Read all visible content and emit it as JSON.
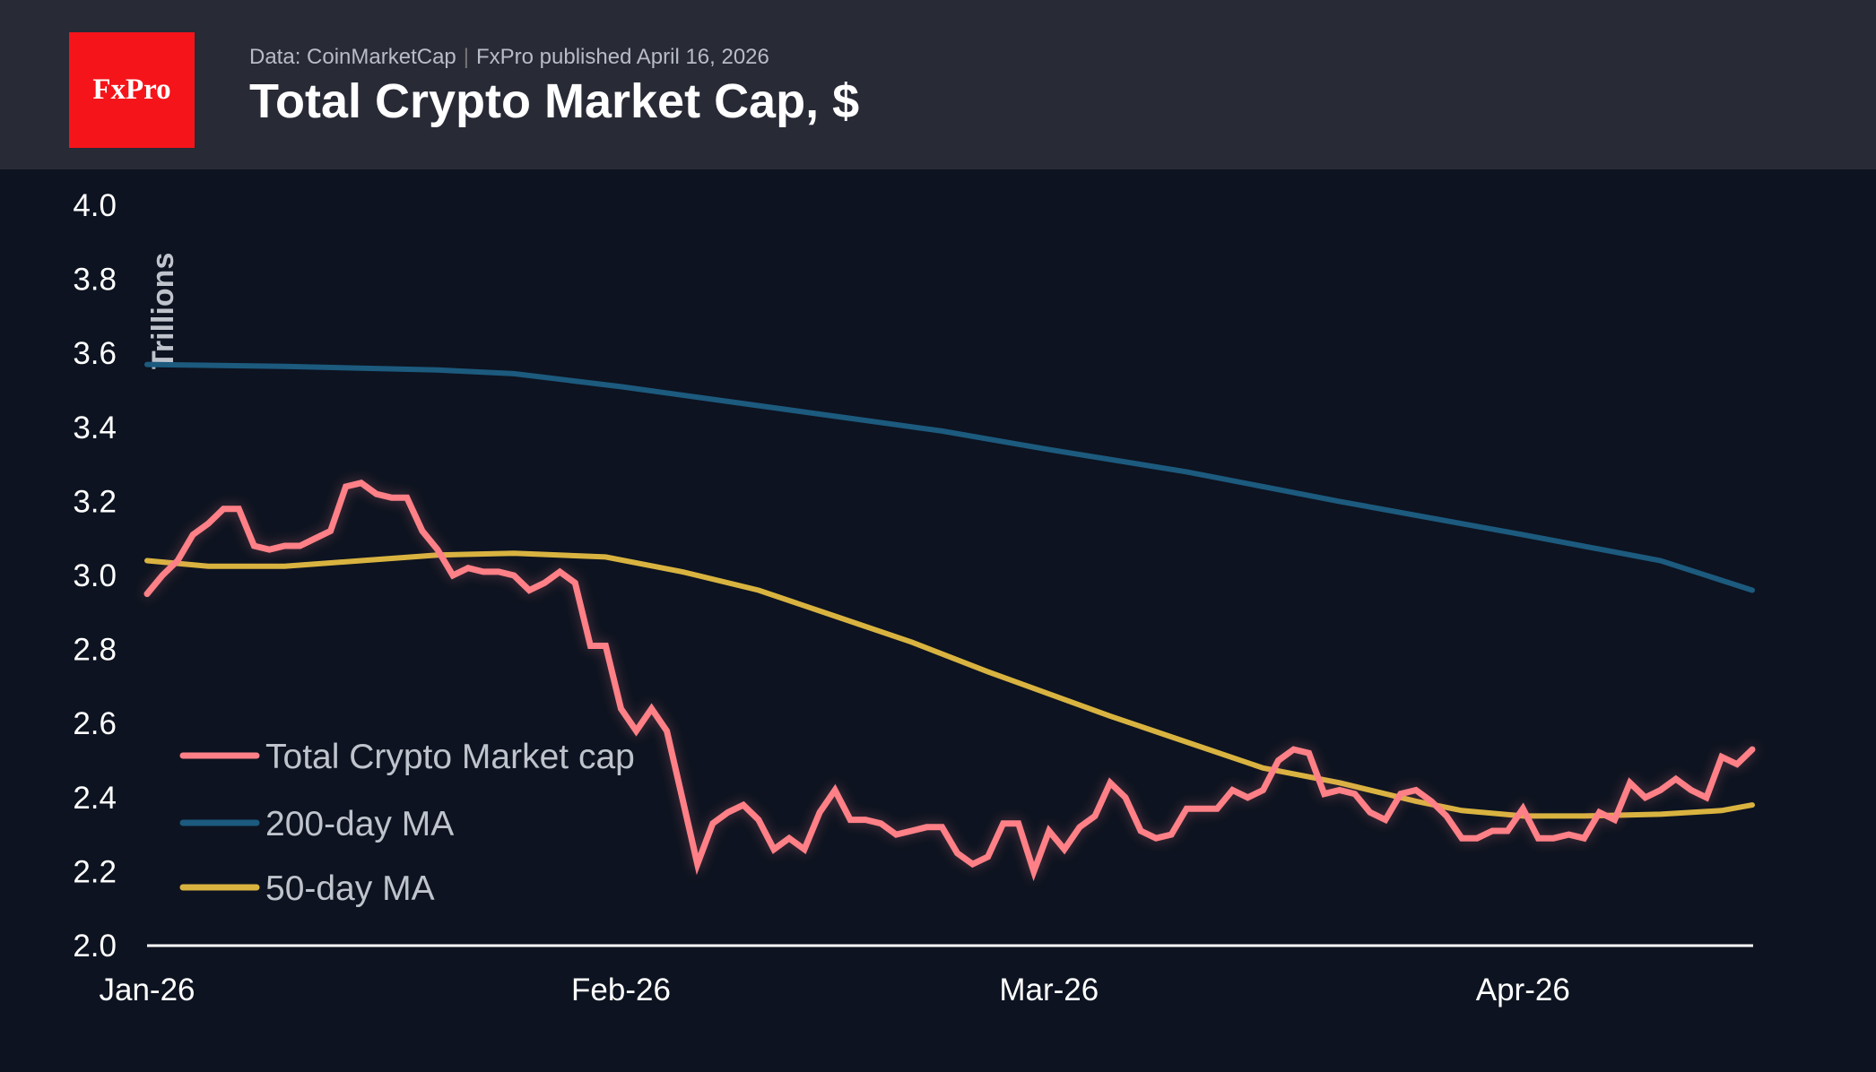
{
  "header": {
    "logo_text": "FxPro",
    "source": "Data: CoinMarketCap",
    "published": "FxPro published April 16, 2026",
    "title": "Total Crypto Market Cap, $"
  },
  "colors": {
    "header_bg": "#282a36",
    "background": "#0d1320",
    "logo_red": "#f5141a",
    "market_cap": "#ff8087",
    "ma200": "#1c5a7e",
    "ma50": "#d9b340"
  },
  "chart_data": {
    "type": "line",
    "title": "Total Crypto Market Cap, $",
    "ylabel": "Trillions",
    "xlabel": "",
    "ylim": [
      2.0,
      4.0
    ],
    "xlim": [
      "2026-01-01",
      "2026-04-16"
    ],
    "y_ticks": [
      "2.0",
      "2.2",
      "2.4",
      "2.6",
      "2.8",
      "3.0",
      "3.2",
      "3.4",
      "3.6",
      "3.8",
      "4.0"
    ],
    "x_ticks": [
      {
        "date": "2026-01-01",
        "label": "Jan-26"
      },
      {
        "date": "2026-02-01",
        "label": "Feb-26"
      },
      {
        "date": "2026-03-01",
        "label": "Mar-26"
      },
      {
        "date": "2026-04-01",
        "label": "Apr-26"
      }
    ],
    "grid": false,
    "legend_position": "bottom-left",
    "series": [
      {
        "name": "Total Crypto Market cap",
        "color": "#ff8087",
        "points": [
          [
            "2026-01-01",
            2.95
          ],
          [
            "2026-01-02",
            3.0
          ],
          [
            "2026-01-03",
            3.04
          ],
          [
            "2026-01-04",
            3.11
          ],
          [
            "2026-01-05",
            3.14
          ],
          [
            "2026-01-06",
            3.18
          ],
          [
            "2026-01-07",
            3.18
          ],
          [
            "2026-01-08",
            3.08
          ],
          [
            "2026-01-09",
            3.07
          ],
          [
            "2026-01-10",
            3.08
          ],
          [
            "2026-01-11",
            3.08
          ],
          [
            "2026-01-12",
            3.1
          ],
          [
            "2026-01-13",
            3.12
          ],
          [
            "2026-01-14",
            3.24
          ],
          [
            "2026-01-15",
            3.25
          ],
          [
            "2026-01-16",
            3.22
          ],
          [
            "2026-01-17",
            3.21
          ],
          [
            "2026-01-18",
            3.21
          ],
          [
            "2026-01-19",
            3.12
          ],
          [
            "2026-01-20",
            3.07
          ],
          [
            "2026-01-21",
            3.0
          ],
          [
            "2026-01-22",
            3.02
          ],
          [
            "2026-01-23",
            3.01
          ],
          [
            "2026-01-24",
            3.01
          ],
          [
            "2026-01-25",
            3.0
          ],
          [
            "2026-01-26",
            2.96
          ],
          [
            "2026-01-27",
            2.98
          ],
          [
            "2026-01-28",
            3.01
          ],
          [
            "2026-01-29",
            2.98
          ],
          [
            "2026-01-30",
            2.81
          ],
          [
            "2026-01-31",
            2.81
          ],
          [
            "2026-02-01",
            2.64
          ],
          [
            "2026-02-02",
            2.58
          ],
          [
            "2026-02-03",
            2.64
          ],
          [
            "2026-02-04",
            2.58
          ],
          [
            "2026-02-05",
            2.4
          ],
          [
            "2026-02-06",
            2.22
          ],
          [
            "2026-02-07",
            2.33
          ],
          [
            "2026-02-08",
            2.36
          ],
          [
            "2026-02-09",
            2.38
          ],
          [
            "2026-02-10",
            2.34
          ],
          [
            "2026-02-11",
            2.26
          ],
          [
            "2026-02-12",
            2.29
          ],
          [
            "2026-02-13",
            2.26
          ],
          [
            "2026-02-14",
            2.36
          ],
          [
            "2026-02-15",
            2.42
          ],
          [
            "2026-02-16",
            2.34
          ],
          [
            "2026-02-17",
            2.34
          ],
          [
            "2026-02-18",
            2.33
          ],
          [
            "2026-02-19",
            2.3
          ],
          [
            "2026-02-20",
            2.31
          ],
          [
            "2026-02-21",
            2.32
          ],
          [
            "2026-02-22",
            2.32
          ],
          [
            "2026-02-23",
            2.25
          ],
          [
            "2026-02-24",
            2.22
          ],
          [
            "2026-02-25",
            2.24
          ],
          [
            "2026-02-26",
            2.33
          ],
          [
            "2026-02-27",
            2.33
          ],
          [
            "2026-02-28",
            2.2
          ],
          [
            "2026-03-01",
            2.31
          ],
          [
            "2026-03-02",
            2.26
          ],
          [
            "2026-03-03",
            2.32
          ],
          [
            "2026-03-04",
            2.35
          ],
          [
            "2026-03-05",
            2.44
          ],
          [
            "2026-03-06",
            2.4
          ],
          [
            "2026-03-07",
            2.31
          ],
          [
            "2026-03-08",
            2.29
          ],
          [
            "2026-03-09",
            2.3
          ],
          [
            "2026-03-10",
            2.37
          ],
          [
            "2026-03-11",
            2.37
          ],
          [
            "2026-03-12",
            2.37
          ],
          [
            "2026-03-13",
            2.42
          ],
          [
            "2026-03-14",
            2.4
          ],
          [
            "2026-03-15",
            2.42
          ],
          [
            "2026-03-16",
            2.5
          ],
          [
            "2026-03-17",
            2.53
          ],
          [
            "2026-03-18",
            2.52
          ],
          [
            "2026-03-19",
            2.41
          ],
          [
            "2026-03-20",
            2.42
          ],
          [
            "2026-03-21",
            2.41
          ],
          [
            "2026-03-22",
            2.36
          ],
          [
            "2026-03-23",
            2.34
          ],
          [
            "2026-03-24",
            2.41
          ],
          [
            "2026-03-25",
            2.42
          ],
          [
            "2026-03-26",
            2.39
          ],
          [
            "2026-03-27",
            2.35
          ],
          [
            "2026-03-28",
            2.29
          ],
          [
            "2026-03-29",
            2.29
          ],
          [
            "2026-03-30",
            2.31
          ],
          [
            "2026-03-31",
            2.31
          ],
          [
            "2026-04-01",
            2.37
          ],
          [
            "2026-04-02",
            2.29
          ],
          [
            "2026-04-03",
            2.29
          ],
          [
            "2026-04-04",
            2.3
          ],
          [
            "2026-04-05",
            2.29
          ],
          [
            "2026-04-06",
            2.36
          ],
          [
            "2026-04-07",
            2.34
          ],
          [
            "2026-04-08",
            2.44
          ],
          [
            "2026-04-09",
            2.4
          ],
          [
            "2026-04-10",
            2.42
          ],
          [
            "2026-04-11",
            2.45
          ],
          [
            "2026-04-12",
            2.42
          ],
          [
            "2026-04-13",
            2.4
          ],
          [
            "2026-04-14",
            2.51
          ],
          [
            "2026-04-15",
            2.49
          ],
          [
            "2026-04-16",
            2.53
          ]
        ]
      },
      {
        "name": "200-day MA",
        "color": "#1c5a7e",
        "points": [
          [
            "2026-01-01",
            3.57
          ],
          [
            "2026-01-10",
            3.565
          ],
          [
            "2026-01-20",
            3.555
          ],
          [
            "2026-01-25",
            3.545
          ],
          [
            "2026-02-01",
            3.51
          ],
          [
            "2026-02-08",
            3.47
          ],
          [
            "2026-02-15",
            3.43
          ],
          [
            "2026-02-22",
            3.39
          ],
          [
            "2026-03-01",
            3.34
          ],
          [
            "2026-03-10",
            3.28
          ],
          [
            "2026-03-20",
            3.2
          ],
          [
            "2026-04-01",
            3.11
          ],
          [
            "2026-04-10",
            3.04
          ],
          [
            "2026-04-16",
            2.96
          ]
        ]
      },
      {
        "name": "50-day MA",
        "color": "#d9b340",
        "points": [
          [
            "2026-01-01",
            3.04
          ],
          [
            "2026-01-05",
            3.025
          ],
          [
            "2026-01-10",
            3.025
          ],
          [
            "2026-01-15",
            3.04
          ],
          [
            "2026-01-20",
            3.055
          ],
          [
            "2026-01-25",
            3.06
          ],
          [
            "2026-01-31",
            3.05
          ],
          [
            "2026-02-05",
            3.01
          ],
          [
            "2026-02-10",
            2.96
          ],
          [
            "2026-02-15",
            2.89
          ],
          [
            "2026-02-20",
            2.82
          ],
          [
            "2026-02-25",
            2.74
          ],
          [
            "2026-03-01",
            2.68
          ],
          [
            "2026-03-05",
            2.62
          ],
          [
            "2026-03-10",
            2.55
          ],
          [
            "2026-03-15",
            2.48
          ],
          [
            "2026-03-20",
            2.44
          ],
          [
            "2026-03-25",
            2.39
          ],
          [
            "2026-03-28",
            2.365
          ],
          [
            "2026-04-01",
            2.35
          ],
          [
            "2026-04-05",
            2.35
          ],
          [
            "2026-04-10",
            2.355
          ],
          [
            "2026-04-14",
            2.365
          ],
          [
            "2026-04-16",
            2.38
          ]
        ]
      }
    ]
  }
}
